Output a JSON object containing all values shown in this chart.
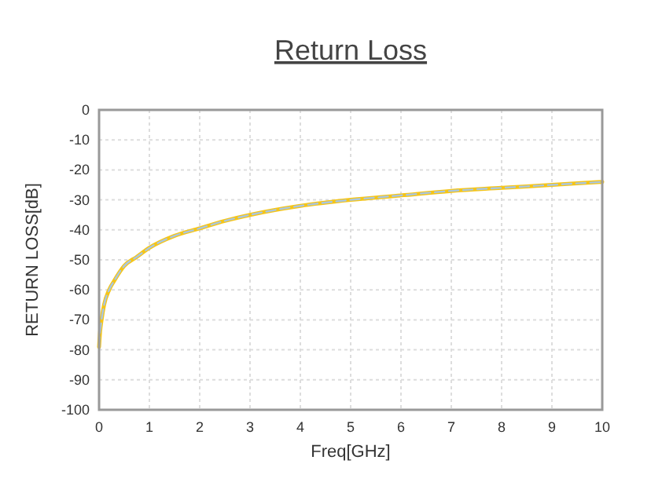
{
  "chart_data": {
    "type": "line",
    "title": "Return Loss",
    "xlabel": "Freq[GHz]",
    "ylabel": "RETURN LOSS[dB]",
    "xlim": [
      0,
      10
    ],
    "xticks": [
      0,
      1,
      2,
      3,
      4,
      5,
      6,
      7,
      8,
      9,
      10
    ],
    "ylim": [
      -100,
      0
    ],
    "yticks": [
      -100,
      -90,
      -80,
      -70,
      -60,
      -50,
      -40,
      -30,
      -20,
      -10,
      0
    ],
    "grid": true,
    "x": [
      0,
      0.02,
      0.05,
      0.1,
      0.2,
      0.3,
      0.5,
      0.75,
      1,
      1.5,
      2,
      2.5,
      3,
      4,
      5,
      6,
      7,
      8,
      9,
      10
    ],
    "series": [
      {
        "color": "#f5c518",
        "line_style": "solid",
        "values": [
          -79,
          -74,
          -70,
          -65,
          -60,
          -57,
          -52,
          -49,
          -46,
          -42,
          -39.5,
          -37,
          -35,
          -32,
          -30,
          -28.5,
          -27,
          -26,
          -25,
          -24
        ]
      },
      {
        "color": "#a9c6e0",
        "line_style": "dashed",
        "values": [
          -79,
          -74,
          -70,
          -65,
          -60,
          -57,
          -52,
          -49,
          -46,
          -42,
          -39.5,
          -37,
          -35,
          -32,
          -30,
          -28.5,
          -27,
          -26,
          -25,
          -24
        ]
      }
    ]
  }
}
